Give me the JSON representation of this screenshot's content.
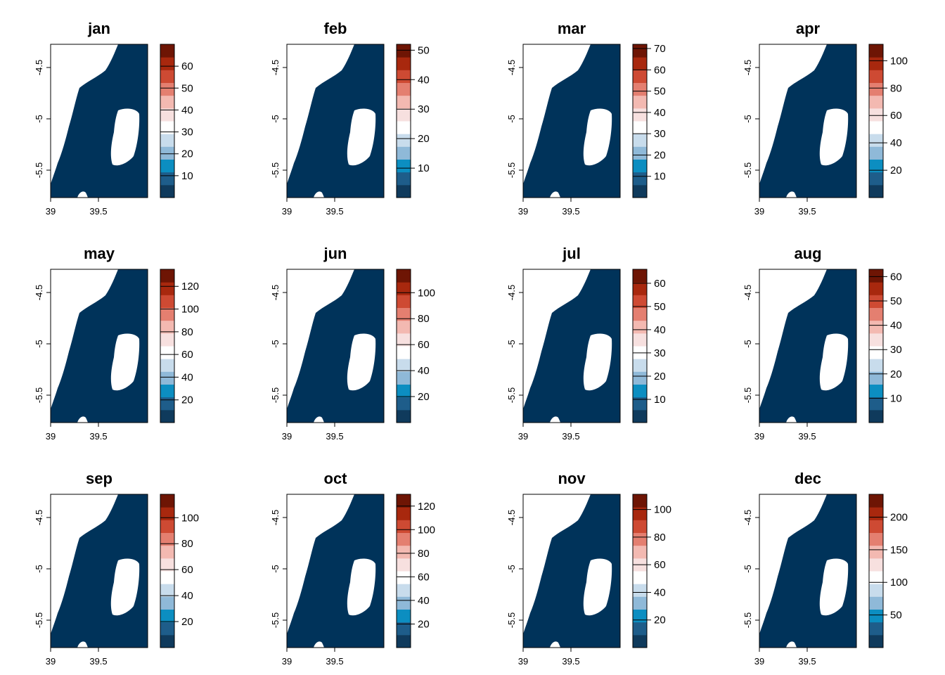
{
  "colors": {
    "sea": "#00335A",
    "land": "#FFFFFF",
    "palette": [
      "#0F3A5C",
      "#1E5D8A",
      "#0C8EC1",
      "#8FB9D8",
      "#C8DCEC",
      "#FFFFFF",
      "#F7E0DF",
      "#F3B9B1",
      "#E47F70",
      "#CE4A33",
      "#A8280E",
      "#6E1504"
    ]
  },
  "axes": {
    "x_ticks": [
      "39",
      "39.5"
    ],
    "y_ticks": [
      "-4.5",
      "-5",
      "-5.5"
    ]
  },
  "panels": [
    {
      "title": "jan",
      "legend_ticks": [
        "10",
        "20",
        "30",
        "40",
        "50",
        "60"
      ],
      "legend_max": 70
    },
    {
      "title": "feb",
      "legend_ticks": [
        "10",
        "20",
        "30",
        "40",
        "50"
      ],
      "legend_max": 52
    },
    {
      "title": "mar",
      "legend_ticks": [
        "10",
        "20",
        "30",
        "40",
        "50",
        "60",
        "70"
      ],
      "legend_max": 72
    },
    {
      "title": "apr",
      "legend_ticks": [
        "20",
        "40",
        "60",
        "80",
        "100"
      ],
      "legend_max": 112
    },
    {
      "title": "may",
      "legend_ticks": [
        "20",
        "40",
        "60",
        "80",
        "100",
        "120"
      ],
      "legend_max": 135
    },
    {
      "title": "jun",
      "legend_ticks": [
        "20",
        "40",
        "60",
        "80",
        "100"
      ],
      "legend_max": 118
    },
    {
      "title": "jul",
      "legend_ticks": [
        "10",
        "20",
        "30",
        "40",
        "50",
        "60"
      ],
      "legend_max": 66
    },
    {
      "title": "aug",
      "legend_ticks": [
        "10",
        "20",
        "30",
        "40",
        "50",
        "60"
      ],
      "legend_max": 63
    },
    {
      "title": "sep",
      "legend_ticks": [
        "20",
        "40",
        "60",
        "80",
        "100"
      ],
      "legend_max": 118
    },
    {
      "title": "oct",
      "legend_ticks": [
        "20",
        "40",
        "60",
        "80",
        "100",
        "120"
      ],
      "legend_max": 130
    },
    {
      "title": "nov",
      "legend_ticks": [
        "20",
        "40",
        "60",
        "80",
        "100"
      ],
      "legend_max": 111
    },
    {
      "title": "dec",
      "legend_ticks": [
        "50",
        "100",
        "150",
        "200"
      ],
      "legend_max": 235
    }
  ]
}
